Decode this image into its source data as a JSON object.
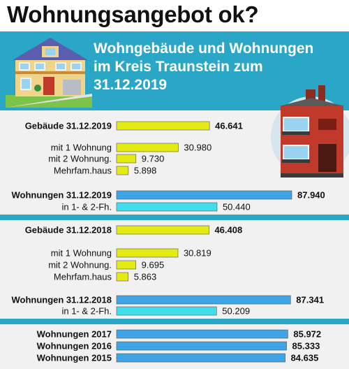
{
  "page": {
    "title": "Wohnungsangebot ok?",
    "subtitle_lines": [
      "Wohngebäude und Wohnungen",
      "im Kreis Traunstein zum",
      "31.12.2019"
    ]
  },
  "colors": {
    "header": "#2aa6c6",
    "yellow": "#e4ea13",
    "blue": "#3fa4e6",
    "cyan": "#41ddea",
    "panel": "#f1f1f1"
  },
  "chart_data": {
    "type": "bar",
    "orientation": "horizontal",
    "xlim": [
      0,
      100000
    ],
    "rows": [
      {
        "label": "Gebäude 31.12.2019",
        "value": 46641,
        "display": "46.641",
        "bold": true,
        "color": "yellow"
      },
      {
        "label": "mit 1 Wohnung",
        "value": 30980,
        "display": "30.980",
        "bold": false,
        "color": "yellow"
      },
      {
        "label": "mit 2 Wohnung.",
        "value": 9730,
        "display": "9.730",
        "bold": false,
        "color": "yellow"
      },
      {
        "label": "Mehrfam.haus",
        "value": 5898,
        "display": "5.898",
        "bold": false,
        "color": "yellow"
      },
      {
        "label": "Wohnungen 31.12.2019",
        "value": 87940,
        "display": "87.940",
        "bold": true,
        "color": "blue"
      },
      {
        "label": "in 1- & 2-Fh.",
        "value": 50440,
        "display": "50.440",
        "bold": false,
        "color": "cyan"
      },
      {
        "label": "Gebäude 31.12.2018",
        "value": 46408,
        "display": "46.408",
        "bold": true,
        "color": "yellow"
      },
      {
        "label": "mit 1 Wohnung",
        "value": 30819,
        "display": "30.819",
        "bold": false,
        "color": "yellow"
      },
      {
        "label": "mit 2 Wohnung.",
        "value": 9695,
        "display": "9.695",
        "bold": false,
        "color": "yellow"
      },
      {
        "label": "Mehrfam.haus",
        "value": 5863,
        "display": "5.863",
        "bold": false,
        "color": "yellow"
      },
      {
        "label": "Wohnungen 31.12.2018",
        "value": 87341,
        "display": "87.341",
        "bold": true,
        "color": "blue"
      },
      {
        "label": "in 1- & 2-Fh.",
        "value": 50209,
        "display": "50.209",
        "bold": false,
        "color": "cyan"
      },
      {
        "label": "Wohnungen 2017",
        "value": 85972,
        "display": "85.972",
        "bold": true,
        "color": "blue"
      },
      {
        "label": "Wohnungen 2016",
        "value": 85333,
        "display": "85.333",
        "bold": true,
        "color": "blue"
      },
      {
        "label": "Wohnungen 2015",
        "value": 84635,
        "display": "84.635",
        "bold": true,
        "color": "blue"
      }
    ]
  }
}
